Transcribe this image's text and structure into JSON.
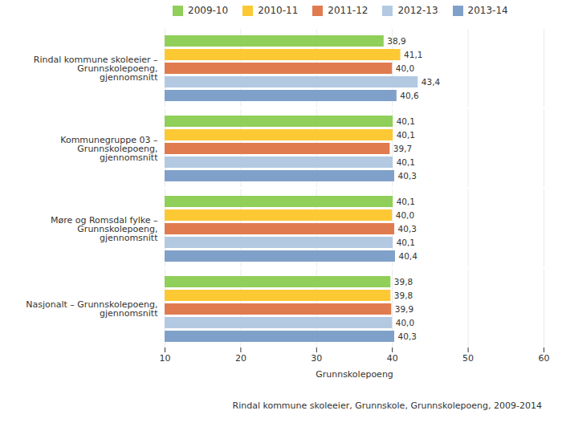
{
  "chart_data": {
    "type": "bar",
    "orientation": "horizontal",
    "caption": "Rindal kommune skoleeier, Grunnskole, Grunnskolepoeng, 2009-2014",
    "x_label": "Grunnskolepoeng",
    "categories": [
      "Rindal kommune skoleeier –\nGrunnskolepoeng,\ngjennomsnitt",
      "Kommunegruppe 03 –\nGrunnskolepoeng,\ngjennomsnitt",
      "Møre og Romsdal fylke –\nGrunnskolepoeng,\ngjennomsnitt",
      "Nasjonalt – Grunnskolepoeng,\ngjennomsnitt"
    ],
    "series": [
      {
        "name": "2009-10",
        "color": "#8fcf5a",
        "values": [
          38.9,
          40.1,
          40.1,
          39.8
        ],
        "value_labels": [
          "38,9",
          "40,1",
          "40,1",
          "39,8"
        ]
      },
      {
        "name": "2010-11",
        "color": "#fcc934",
        "values": [
          41.1,
          40.1,
          40.0,
          39.8
        ],
        "value_labels": [
          "41,1",
          "40,1",
          "40,0",
          "39,8"
        ]
      },
      {
        "name": "2011-12",
        "color": "#e07b4f",
        "values": [
          40.0,
          39.7,
          40.3,
          39.9
        ],
        "value_labels": [
          "40,0",
          "39,7",
          "40,3",
          "39,9"
        ]
      },
      {
        "name": "2012-13",
        "color": "#b3c9e2",
        "values": [
          43.4,
          40.1,
          40.1,
          40.0
        ],
        "value_labels": [
          "43,4",
          "40,1",
          "40,1",
          "40,0"
        ]
      },
      {
        "name": "2013-14",
        "color": "#7fa1c9",
        "values": [
          40.6,
          40.3,
          40.4,
          40.3
        ],
        "value_labels": [
          "40,6",
          "40,3",
          "40,4",
          "40,3"
        ]
      }
    ],
    "xlim": [
      10,
      60
    ],
    "xticks": [
      10,
      20,
      30,
      40,
      50,
      60
    ],
    "grid": true,
    "legend": "top",
    "data_labels": true
  }
}
